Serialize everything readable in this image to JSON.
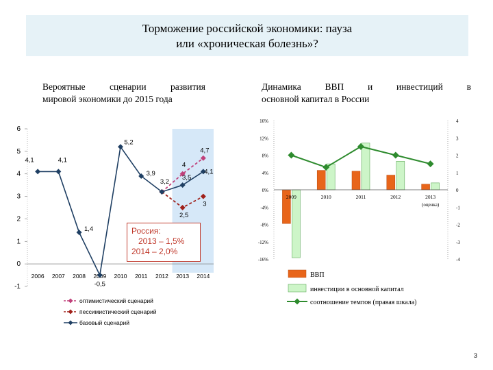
{
  "header": {
    "title_line1": "Торможение российской экономики: пауза",
    "title_line2": "или «хроническая болезнь»?"
  },
  "left_subtitle": {
    "line1": "Вероятные сценарии развития",
    "line2": "мировой экономики до 2015 года"
  },
  "right_subtitle": {
    "line1_words": [
      "Динамика",
      "ВВП",
      "и",
      "инвестиций",
      "в"
    ],
    "line2": "основной капитал в России"
  },
  "inset": {
    "line1": "Россия:",
    "line2": "2013 – 1,5%",
    "line3": "2014 – 2,0%"
  },
  "page_number": "3",
  "chart_data": [
    {
      "type": "line",
      "x": [
        "2006",
        "2007",
        "2008",
        "2009",
        "2010",
        "2011",
        "2012",
        "2013",
        "2014"
      ],
      "ylim": [
        -1,
        6
      ],
      "yticks": [
        "-1",
        "0",
        "1",
        "2",
        "3",
        "4",
        "5",
        "6"
      ],
      "highlight_years": [
        "2013",
        "2014"
      ],
      "colors": {
        "base": "#1f3f63",
        "optimistic": "#c0407a",
        "pessimistic": "#a0201a",
        "highlight": "#d6e8f8"
      },
      "series": [
        {
          "key": "base",
          "name": "базовый сценарий",
          "points": [
            {
              "x": "2006",
              "y": 4.1,
              "label": "4,1"
            },
            {
              "x": "2007",
              "y": 4.1,
              "label": "4,1"
            },
            {
              "x": "2008",
              "y": 1.4,
              "label": "1,4"
            },
            {
              "x": "2009",
              "y": -0.5,
              "label": "-0,5"
            },
            {
              "x": "2010",
              "y": 5.2,
              "label": "5,2"
            },
            {
              "x": "2011",
              "y": 3.9,
              "label": "3,9"
            },
            {
              "x": "2012",
              "y": 3.2,
              "label": "3,2"
            },
            {
              "x": "2013",
              "y": 3.5,
              "label": "3,5"
            },
            {
              "x": "2014",
              "y": 4.1,
              "label": "4,1"
            }
          ]
        },
        {
          "key": "optimistic",
          "name": "оптимистический сценарий",
          "points": [
            {
              "x": "2012",
              "y": 3.2,
              "label": ""
            },
            {
              "x": "2013",
              "y": 4.0,
              "label": "4"
            },
            {
              "x": "2014",
              "y": 4.7,
              "label": "4,7"
            }
          ]
        },
        {
          "key": "pessimistic",
          "name": "пессимистический сценарий",
          "points": [
            {
              "x": "2012",
              "y": 3.2,
              "label": ""
            },
            {
              "x": "2013",
              "y": 2.5,
              "label": "2,5"
            },
            {
              "x": "2014",
              "y": 3.0,
              "label": "3"
            }
          ]
        }
      ]
    },
    {
      "type": "bar",
      "categories": [
        "2009",
        "2010",
        "2011",
        "2012",
        "2013"
      ],
      "category_note": "(оценка)",
      "ylim_left": [
        -16,
        16
      ],
      "yticks_left": [
        "16%",
        "12%",
        "8%",
        "4%",
        "0%",
        "-4%",
        "-8%",
        "-12%",
        "-16%"
      ],
      "ylim_right": [
        -4,
        4
      ],
      "yticks_right": [
        "4",
        "3",
        "2",
        "1",
        "0",
        "-1",
        "-2",
        "-3",
        "-4"
      ],
      "colors": {
        "gdp": "#e8651a",
        "invest": "#cdf5c8",
        "invest_border": "#5fa85a",
        "ratio": "#2e8b2e"
      },
      "series": [
        {
          "key": "gdp",
          "name": "ВВП",
          "values": [
            -7.8,
            4.5,
            4.3,
            3.4,
            1.3
          ]
        },
        {
          "key": "invest",
          "name": "инвестиции в основной капитал",
          "values": [
            -15.7,
            6.0,
            10.8,
            6.6,
            1.6
          ]
        },
        {
          "key": "ratio",
          "name": "соотношение темпов (правая шкала)",
          "axis": "right",
          "values": [
            2.0,
            1.3,
            2.5,
            2.0,
            1.5
          ]
        }
      ]
    }
  ]
}
